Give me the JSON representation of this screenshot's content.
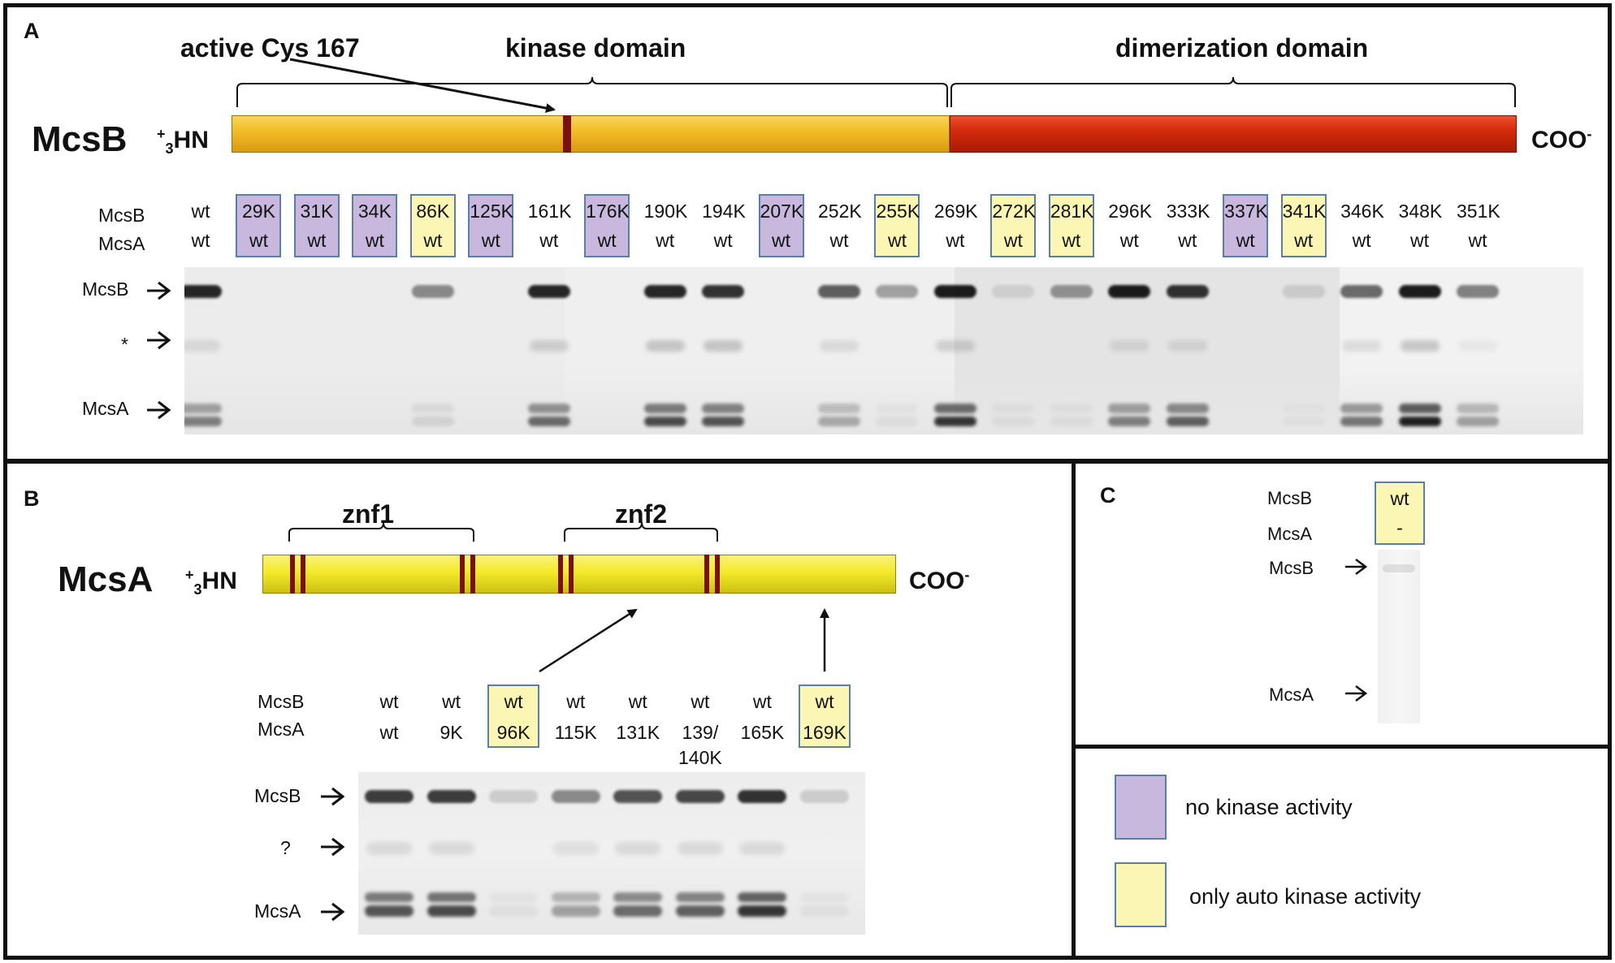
{
  "colors": {
    "no_kinase": "#c8b8dd",
    "auto_only": "#fbf6b4",
    "lane_border": "#5a7ea8",
    "mcsb_kinase_domain": "#f2be28",
    "mcsb_dimer_domain": "#d42a0c",
    "mcsa_bar": "#f4ea2a",
    "marker": "#7a1010"
  },
  "panelA": {
    "label": "A",
    "protein": "McsB",
    "nterm_super": "+",
    "nterm_sub": "3",
    "nterm_text": "HN",
    "cterm_text": "COO",
    "cterm_super": "-",
    "active_site": "active Cys 167",
    "kinase_domain": "kinase domain",
    "dimer_domain": "dimerization domain",
    "row_labels": [
      "McsB",
      "McsA"
    ],
    "band_labels": [
      "McsB",
      "*",
      "McsA"
    ],
    "lanes": [
      {
        "b": "wt",
        "a": "wt",
        "status": "none",
        "mcsb": 0.9,
        "star": 0.1,
        "mcsa": 0.5
      },
      {
        "b": "29K",
        "a": "wt",
        "status": "no_kinase",
        "mcsb": 0,
        "star": 0,
        "mcsa": 0
      },
      {
        "b": "31K",
        "a": "wt",
        "status": "no_kinase",
        "mcsb": 0,
        "star": 0,
        "mcsa": 0
      },
      {
        "b": "34K",
        "a": "wt",
        "status": "no_kinase",
        "mcsb": 0,
        "star": 0,
        "mcsa": 0
      },
      {
        "b": "86K",
        "a": "wt",
        "status": "auto_only",
        "mcsb": 0.45,
        "star": 0,
        "mcsa": 0.1
      },
      {
        "b": "125K",
        "a": "wt",
        "status": "no_kinase",
        "mcsb": 0,
        "star": 0,
        "mcsa": 0
      },
      {
        "b": "161K",
        "a": "wt",
        "status": "none",
        "mcsb": 0.9,
        "star": 0.15,
        "mcsa": 0.6
      },
      {
        "b": "176K",
        "a": "wt",
        "status": "no_kinase",
        "mcsb": 0,
        "star": 0,
        "mcsa": 0
      },
      {
        "b": "190K",
        "a": "wt",
        "status": "none",
        "mcsb": 0.9,
        "star": 0.2,
        "mcsa": 0.75
      },
      {
        "b": "194K",
        "a": "wt",
        "status": "none",
        "mcsb": 0.85,
        "star": 0.2,
        "mcsa": 0.7
      },
      {
        "b": "207K",
        "a": "wt",
        "status": "no_kinase",
        "mcsb": 0,
        "star": 0,
        "mcsa": 0
      },
      {
        "b": "252K",
        "a": "wt",
        "status": "none",
        "mcsb": 0.65,
        "star": 0.1,
        "mcsa": 0.3
      },
      {
        "b": "255K",
        "a": "wt",
        "status": "auto_only",
        "mcsb": 0.35,
        "star": 0,
        "mcsa": 0.05
      },
      {
        "b": "269K",
        "a": "wt",
        "status": "none",
        "mcsb": 0.95,
        "star": 0.15,
        "mcsa": 0.85
      },
      {
        "b": "272K",
        "a": "wt",
        "status": "auto_only",
        "mcsb": 0.1,
        "star": 0,
        "mcsa": 0.05
      },
      {
        "b": "281K",
        "a": "wt",
        "status": "auto_only",
        "mcsb": 0.4,
        "star": 0,
        "mcsa": 0.05
      },
      {
        "b": "296K",
        "a": "wt",
        "status": "none",
        "mcsb": 0.95,
        "star": 0.1,
        "mcsa": 0.5
      },
      {
        "b": "333K",
        "a": "wt",
        "status": "none",
        "mcsb": 0.85,
        "star": 0.1,
        "mcsa": 0.65
      },
      {
        "b": "337K",
        "a": "wt",
        "status": "no_kinase",
        "mcsb": 0,
        "star": 0,
        "mcsa": 0
      },
      {
        "b": "341K",
        "a": "wt",
        "status": "auto_only",
        "mcsb": 0.12,
        "star": 0,
        "mcsa": 0.03
      },
      {
        "b": "346K",
        "a": "wt",
        "status": "none",
        "mcsb": 0.6,
        "star": 0.1,
        "mcsa": 0.55
      },
      {
        "b": "348K",
        "a": "wt",
        "status": "none",
        "mcsb": 0.95,
        "star": 0.2,
        "mcsa": 0.95
      },
      {
        "b": "351K",
        "a": "wt",
        "status": "none",
        "mcsb": 0.5,
        "star": 0.05,
        "mcsa": 0.35
      }
    ]
  },
  "panelB": {
    "label": "B",
    "protein": "McsA",
    "nterm_super": "+",
    "nterm_sub": "3",
    "nterm_text": "HN",
    "cterm_text": "COO",
    "cterm_super": "-",
    "znf1": "znf1",
    "znf2": "znf2",
    "row_labels": [
      "McsB",
      "McsA"
    ],
    "band_labels": [
      "McsB",
      "?",
      "McsA"
    ],
    "lanes": [
      {
        "b": "wt",
        "a": "wt",
        "status": "none",
        "mcsb": 0.8,
        "q": 0.1,
        "mcsa": 0.7
      },
      {
        "b": "wt",
        "a": "9K",
        "status": "none",
        "mcsb": 0.8,
        "q": 0.1,
        "mcsa": 0.75
      },
      {
        "b": "wt",
        "a": "96K",
        "status": "auto_only",
        "mcsb": 0.15,
        "q": 0,
        "mcsa": 0.05
      },
      {
        "b": "wt",
        "a": "115K",
        "status": "none",
        "mcsb": 0.45,
        "q": 0.08,
        "mcsa": 0.35
      },
      {
        "b": "wt",
        "a": "131K",
        "status": "none",
        "mcsb": 0.7,
        "q": 0.1,
        "mcsa": 0.6
      },
      {
        "b": "wt",
        "a": "139/ 140K",
        "status": "none",
        "mcsb": 0.75,
        "q": 0.1,
        "mcsa": 0.65
      },
      {
        "b": "wt",
        "a": "165K",
        "status": "none",
        "mcsb": 0.85,
        "q": 0.1,
        "mcsa": 0.85
      },
      {
        "b": "wt",
        "a": "169K",
        "status": "auto_only",
        "mcsb": 0.15,
        "q": 0,
        "mcsa": 0.05
      }
    ]
  },
  "panelC": {
    "label": "C",
    "row_labels": [
      "McsB",
      "McsA"
    ],
    "lane": {
      "b": "wt",
      "a": "-",
      "status": "auto_only"
    },
    "band_labels": [
      "McsB",
      "McsA"
    ]
  },
  "legend": {
    "items": [
      {
        "status": "no_kinase",
        "label": "no kinase activity"
      },
      {
        "status": "auto_only",
        "label": "only auto kinase activity"
      }
    ]
  }
}
